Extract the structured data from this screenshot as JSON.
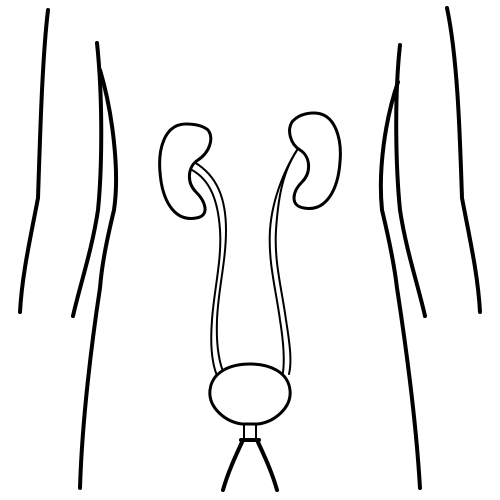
{
  "colors": {
    "background": "#ffffff",
    "line": "#000000"
  },
  "figure": {
    "subject": "urinary-system-line-drawing",
    "parts": [
      "torso-outline",
      "left-arm",
      "right-arm",
      "left-kidney",
      "right-kidney",
      "left-ureter",
      "right-ureter",
      "bladder",
      "urethra"
    ]
  }
}
